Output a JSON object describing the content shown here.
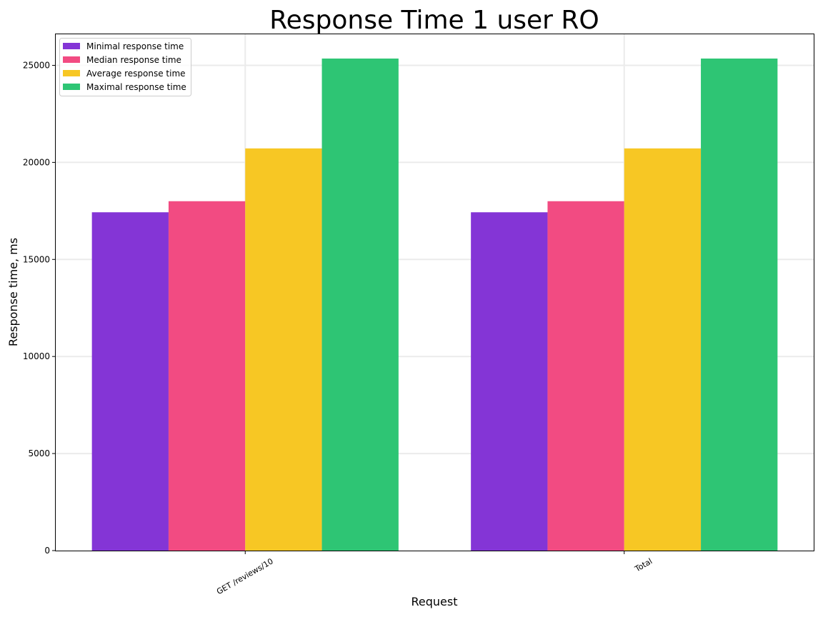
{
  "chart_data": {
    "type": "bar",
    "title": "Response Time 1 user RO",
    "xlabel": "Request",
    "ylabel": "Response time, ms",
    "categories": [
      "GET /reviews/10",
      "Total"
    ],
    "series": [
      {
        "name": "Minimal response time",
        "color": "#8435d6",
        "values": [
          17430,
          17430
        ]
      },
      {
        "name": "Median response time",
        "color": "#f24b82",
        "values": [
          18000,
          18000
        ]
      },
      {
        "name": "Average response time",
        "color": "#f7c724",
        "values": [
          20720,
          20720
        ]
      },
      {
        "name": "Maximal response time",
        "color": "#2ec574",
        "values": [
          25350,
          25350
        ]
      }
    ],
    "ylim": [
      0,
      26600
    ],
    "yticks": [
      0,
      5000,
      10000,
      15000,
      20000,
      25000
    ],
    "grid": true,
    "legend_position": "top-left"
  }
}
